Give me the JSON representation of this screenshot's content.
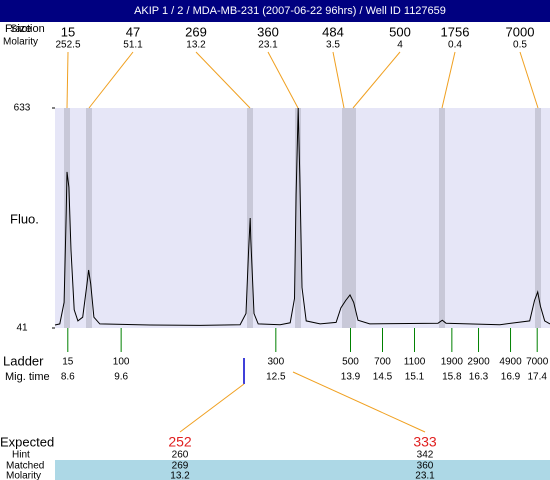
{
  "title": "AKIP 1 / 2 / MDA-MB-231 (2007-06-22 96hrs) / Well ID 1127659",
  "header_labels": {
    "fraction": "Fraction",
    "size": "Size",
    "molarity": "Molarity"
  },
  "peaks": [
    {
      "size": 15,
      "molarity": 252.5
    },
    {
      "size": 47,
      "molarity": 51.1
    },
    {
      "size": 269,
      "molarity": 13.2
    },
    {
      "size": 360,
      "molarity": 23.1
    },
    {
      "size": 484,
      "molarity": 3.5
    },
    {
      "size": 500,
      "molarity": 4
    },
    {
      "size": 1756,
      "molarity": 0.4
    },
    {
      "size": 7000,
      "molarity": 0.5
    }
  ],
  "chart_data": {
    "type": "line",
    "y_label": "Fluo.",
    "x": [
      8.36,
      8.45,
      8.53,
      8.57,
      8.585,
      8.62,
      8.66,
      8.72,
      8.79,
      8.88,
      8.96,
      8.99,
      9.03,
      9.09,
      9.2,
      10.14,
      11.08,
      11.83,
      11.94,
      11.99,
      12.02,
      12.03,
      12.09,
      12.17,
      12.58,
      12.77,
      12.85,
      12.88,
      12.92,
      12.95,
      12.99,
      13.07,
      13.33,
      13.63,
      13.72,
      13.81,
      13.89,
      13.96,
      14.04,
      14.26,
      15.54,
      15.62,
      15.69,
      16.7,
      17.26,
      17.35,
      17.41,
      17.46,
      17.54,
      17.64
    ],
    "values": [
      49,
      52,
      110,
      350,
      461,
      420,
      250,
      90,
      60,
      70,
      160,
      197,
      160,
      70,
      52,
      49,
      48,
      50,
      80,
      250,
      337,
      280,
      80,
      52,
      50,
      55,
      120,
      400,
      633,
      450,
      150,
      60,
      52,
      56,
      95,
      115,
      130,
      110,
      62,
      52,
      54,
      62,
      54,
      50,
      60,
      115,
      138,
      100,
      60,
      52
    ],
    "xlim": [
      8.36,
      17.64
    ],
    "ylim": [
      41,
      633
    ],
    "yticks": [
      41,
      633
    ],
    "color": "#000000"
  },
  "ladder": {
    "label": "Ladder",
    "time_label": "Mig. time",
    "sizes": [
      15,
      100,
      300,
      500,
      700,
      1100,
      1900,
      2900,
      4900,
      7000
    ],
    "mig_times": [
      8.6,
      9.6,
      12.5,
      13.9,
      14.5,
      15.1,
      15.8,
      16.3,
      16.9,
      17.4
    ]
  },
  "expected": {
    "label": "Expected",
    "hint_label": "Hint",
    "matched_label": "Matched",
    "molarity_label": "Molarity",
    "columns": [
      {
        "expected": 252,
        "hint": 260,
        "matched": 269,
        "molarity": 13.2
      },
      {
        "expected": 333,
        "hint": 342,
        "matched": 360,
        "molarity": 23.1
      }
    ]
  }
}
